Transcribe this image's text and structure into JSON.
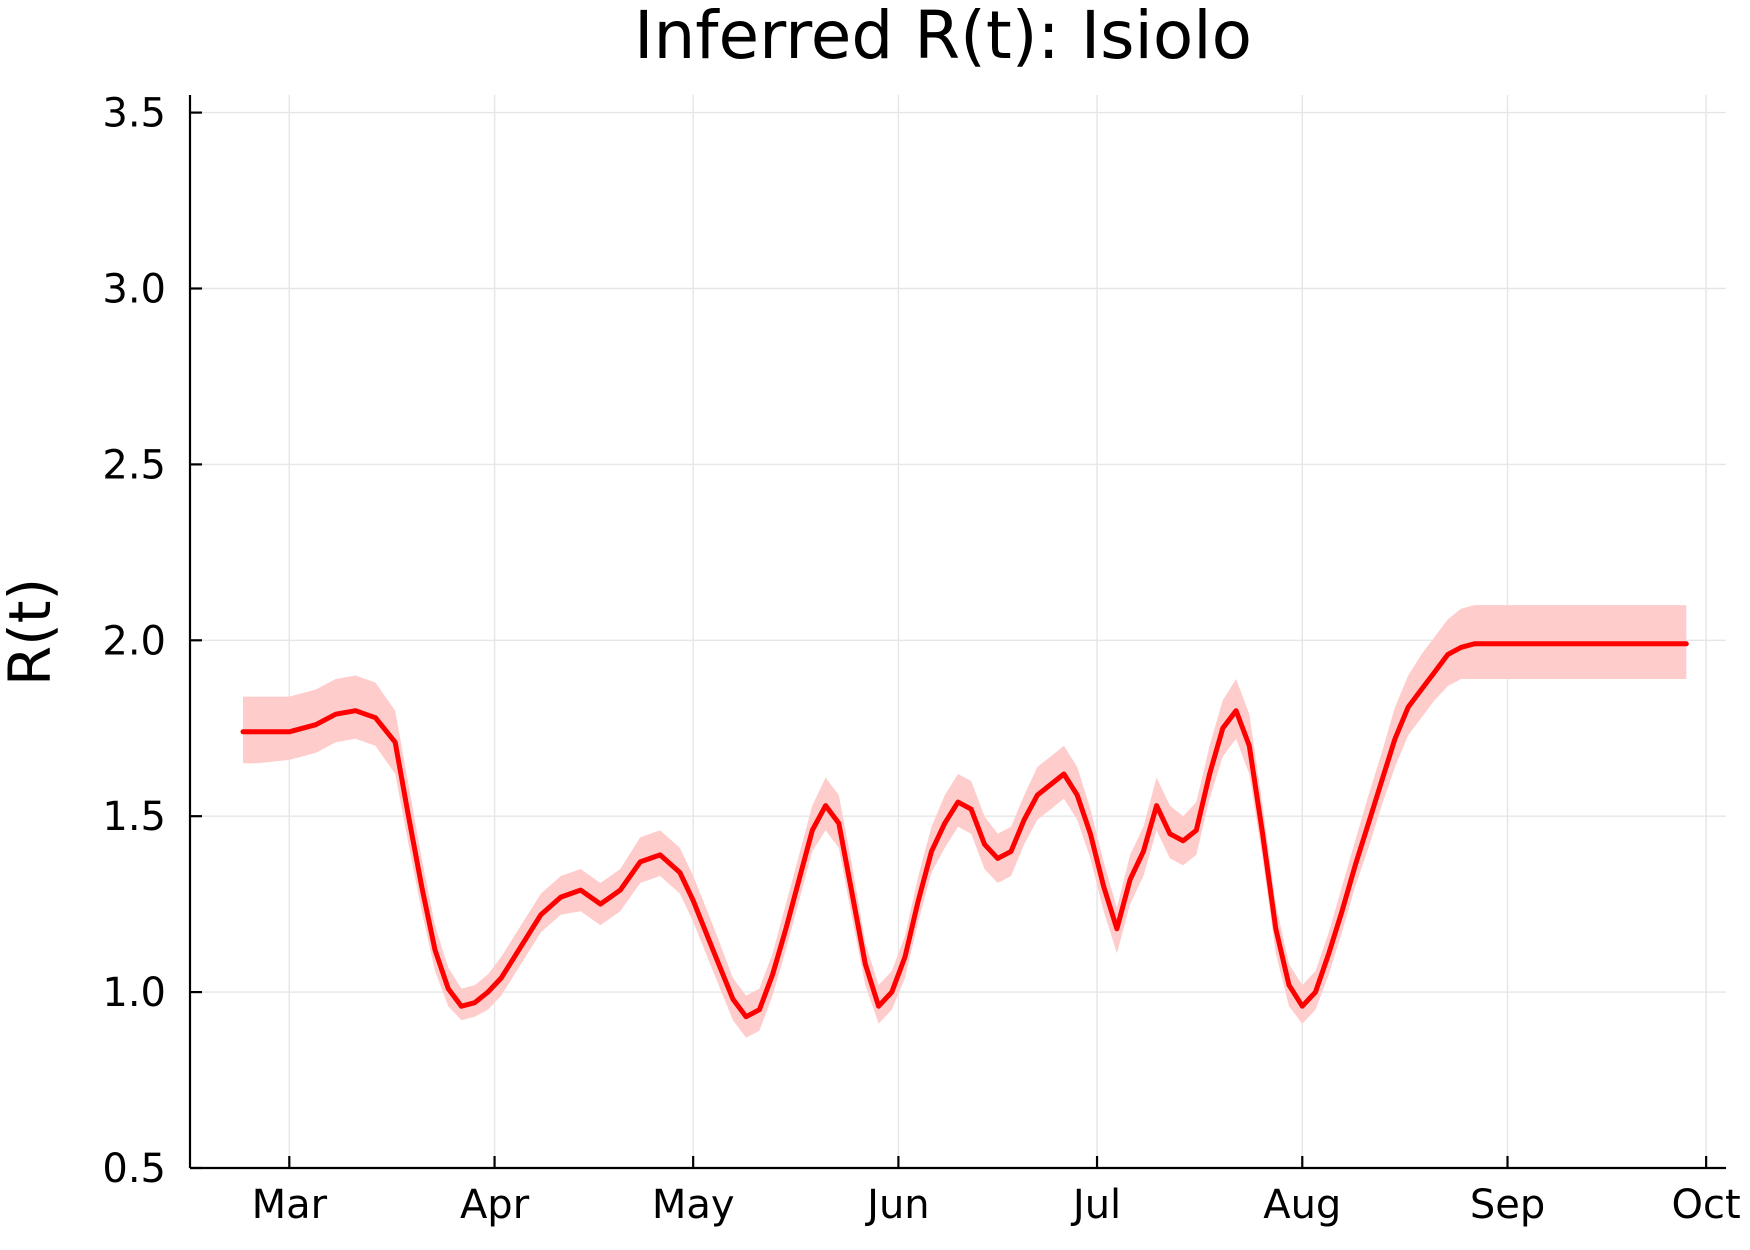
{
  "chart_data": {
    "type": "line",
    "title": "Inferred R(t): Isiolo",
    "xlabel": "",
    "ylabel": "R(t)",
    "ylim": [
      0.5,
      3.55
    ],
    "yticks": [
      "0.5",
      "1.0",
      "1.5",
      "2.0",
      "2.5",
      "3.0",
      "3.5"
    ],
    "xticks": [
      {
        "label": "Mar",
        "date": "2020-03-01"
      },
      {
        "label": "Apr",
        "date": "2020-04-01"
      },
      {
        "label": "May",
        "date": "2020-05-01"
      },
      {
        "label": "Jun",
        "date": "2020-06-01"
      },
      {
        "label": "Jul",
        "date": "2020-07-01"
      },
      {
        "label": "Aug",
        "date": "2020-08-01"
      },
      {
        "label": "Sep",
        "date": "2020-09-01"
      },
      {
        "label": "Oct",
        "date": "2020-10-01"
      }
    ],
    "xlim": [
      "2020-02-15",
      "2020-10-04"
    ],
    "grid": true,
    "line_color": "#ff0000",
    "band_color": "#ffcccc",
    "series": [
      {
        "x": [
          "2020-02-23",
          "2020-02-25",
          "2020-03-01",
          "2020-03-05",
          "2020-03-08",
          "2020-03-11",
          "2020-03-14",
          "2020-03-17",
          "2020-03-19",
          "2020-03-21",
          "2020-03-23",
          "2020-03-25",
          "2020-03-27",
          "2020-03-29",
          "2020-03-31",
          "2020-04-02",
          "2020-04-05",
          "2020-04-08",
          "2020-04-11",
          "2020-04-14",
          "2020-04-17",
          "2020-04-20",
          "2020-04-23",
          "2020-04-26",
          "2020-04-29",
          "2020-05-01",
          "2020-05-04",
          "2020-05-07",
          "2020-05-09",
          "2020-05-11",
          "2020-05-13",
          "2020-05-15",
          "2020-05-17",
          "2020-05-19",
          "2020-05-21",
          "2020-05-23",
          "2020-05-25",
          "2020-05-27",
          "2020-05-29",
          "2020-05-31",
          "2020-06-02",
          "2020-06-04",
          "2020-06-06",
          "2020-06-08",
          "2020-06-10",
          "2020-06-12",
          "2020-06-14",
          "2020-06-16",
          "2020-06-18",
          "2020-06-20",
          "2020-06-22",
          "2020-06-24",
          "2020-06-26",
          "2020-06-28",
          "2020-06-30",
          "2020-07-02",
          "2020-07-04",
          "2020-07-06",
          "2020-07-08",
          "2020-07-10",
          "2020-07-12",
          "2020-07-14",
          "2020-07-16",
          "2020-07-18",
          "2020-07-20",
          "2020-07-22",
          "2020-07-24",
          "2020-07-26",
          "2020-07-28",
          "2020-07-30",
          "2020-08-01",
          "2020-08-03",
          "2020-08-05",
          "2020-08-07",
          "2020-08-09",
          "2020-08-11",
          "2020-08-13",
          "2020-08-15",
          "2020-08-17",
          "2020-08-19",
          "2020-08-21",
          "2020-08-23",
          "2020-08-25",
          "2020-08-27",
          "2020-08-29",
          "2020-08-31",
          "2020-09-02",
          "2020-09-05",
          "2020-09-08",
          "2020-09-11",
          "2020-09-14",
          "2020-09-17",
          "2020-09-20",
          "2020-09-23",
          "2020-09-26",
          "2020-09-28"
        ],
        "values": [
          1.74,
          1.74,
          1.74,
          1.76,
          1.79,
          1.8,
          1.78,
          1.71,
          1.5,
          1.3,
          1.12,
          1.01,
          0.96,
          0.97,
          1.0,
          1.04,
          1.13,
          1.22,
          1.27,
          1.29,
          1.25,
          1.29,
          1.37,
          1.39,
          1.34,
          1.26,
          1.12,
          0.98,
          0.93,
          0.95,
          1.05,
          1.18,
          1.32,
          1.46,
          1.53,
          1.48,
          1.28,
          1.08,
          0.96,
          1.0,
          1.1,
          1.26,
          1.4,
          1.48,
          1.54,
          1.52,
          1.42,
          1.38,
          1.4,
          1.49,
          1.56,
          1.59,
          1.62,
          1.56,
          1.45,
          1.3,
          1.18,
          1.32,
          1.4,
          1.53,
          1.45,
          1.43,
          1.46,
          1.62,
          1.75,
          1.8,
          1.7,
          1.45,
          1.18,
          1.02,
          0.96,
          1.0,
          1.11,
          1.23,
          1.36,
          1.48,
          1.6,
          1.72,
          1.81,
          1.86,
          1.91,
          1.96,
          1.98,
          1.99,
          1.99,
          1.99,
          1.99,
          1.99,
          1.99,
          1.99,
          1.99,
          1.99,
          1.99,
          1.99,
          1.99,
          1.99
        ],
        "lower": [
          1.65,
          1.65,
          1.66,
          1.68,
          1.71,
          1.72,
          1.7,
          1.62,
          1.42,
          1.23,
          1.06,
          0.96,
          0.92,
          0.93,
          0.95,
          0.99,
          1.08,
          1.17,
          1.22,
          1.23,
          1.19,
          1.23,
          1.31,
          1.33,
          1.28,
          1.2,
          1.06,
          0.92,
          0.87,
          0.89,
          0.99,
          1.12,
          1.26,
          1.4,
          1.46,
          1.41,
          1.21,
          1.02,
          0.91,
          0.95,
          1.04,
          1.2,
          1.34,
          1.41,
          1.47,
          1.45,
          1.35,
          1.31,
          1.33,
          1.42,
          1.49,
          1.52,
          1.55,
          1.49,
          1.38,
          1.23,
          1.11,
          1.25,
          1.33,
          1.46,
          1.38,
          1.36,
          1.39,
          1.55,
          1.67,
          1.72,
          1.62,
          1.38,
          1.11,
          0.96,
          0.91,
          0.95,
          1.05,
          1.17,
          1.3,
          1.41,
          1.53,
          1.64,
          1.73,
          1.78,
          1.83,
          1.87,
          1.89,
          1.89,
          1.89,
          1.89,
          1.89,
          1.89,
          1.89,
          1.89,
          1.89,
          1.89,
          1.89,
          1.89,
          1.89,
          1.89
        ],
        "upper": [
          1.84,
          1.84,
          1.84,
          1.86,
          1.89,
          1.9,
          1.88,
          1.8,
          1.59,
          1.38,
          1.19,
          1.07,
          1.01,
          1.02,
          1.05,
          1.1,
          1.19,
          1.28,
          1.33,
          1.35,
          1.31,
          1.35,
          1.44,
          1.46,
          1.41,
          1.33,
          1.19,
          1.04,
          0.99,
          1.01,
          1.11,
          1.25,
          1.39,
          1.53,
          1.61,
          1.56,
          1.36,
          1.14,
          1.02,
          1.06,
          1.16,
          1.33,
          1.47,
          1.56,
          1.62,
          1.6,
          1.5,
          1.45,
          1.47,
          1.56,
          1.64,
          1.67,
          1.7,
          1.64,
          1.52,
          1.37,
          1.24,
          1.39,
          1.47,
          1.61,
          1.53,
          1.5,
          1.54,
          1.7,
          1.83,
          1.89,
          1.79,
          1.53,
          1.25,
          1.08,
          1.02,
          1.06,
          1.17,
          1.3,
          1.43,
          1.56,
          1.68,
          1.81,
          1.9,
          1.96,
          2.01,
          2.06,
          2.09,
          2.1,
          2.1,
          2.1,
          2.1,
          2.1,
          2.1,
          2.1,
          2.1,
          2.1,
          2.1,
          2.1,
          2.1,
          2.1
        ]
      }
    ]
  }
}
